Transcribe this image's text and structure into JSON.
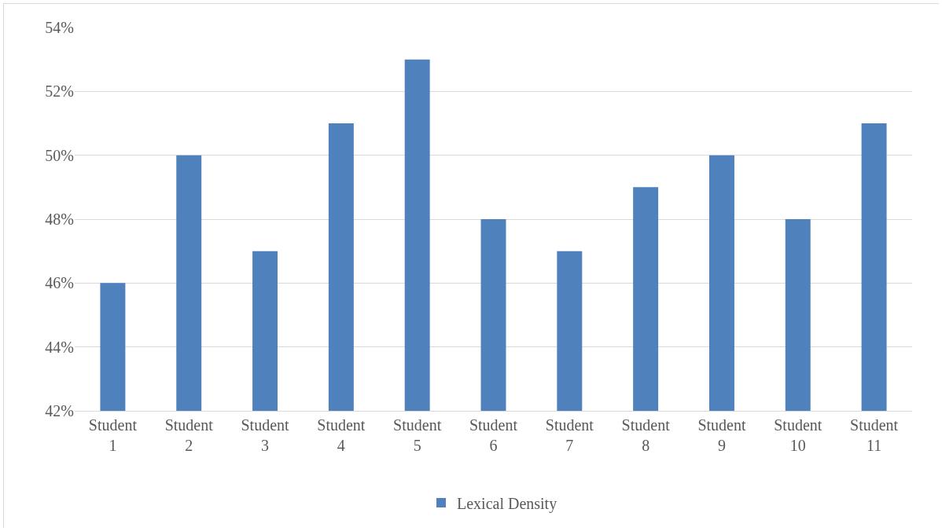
{
  "chart_data": {
    "type": "bar",
    "categories": [
      "Student 1",
      "Student 2",
      "Student 3",
      "Student 4",
      "Student 5",
      "Student 6",
      "Student 7",
      "Student 8",
      "Student 9",
      "Student 10",
      "Student 11"
    ],
    "series": [
      {
        "name": "Lexical Density",
        "color": "#4f81bd",
        "values": [
          46,
          50,
          47,
          51,
          53,
          48,
          47,
          49,
          50,
          48,
          51
        ]
      }
    ],
    "ylim": [
      42,
      54
    ],
    "yticks": [
      {
        "value": 42,
        "label": "42%"
      },
      {
        "value": 44,
        "label": "44%"
      },
      {
        "value": 46,
        "label": "46%"
      },
      {
        "value": 48,
        "label": "48%"
      },
      {
        "value": 50,
        "label": "50%"
      },
      {
        "value": 52,
        "label": "52%"
      },
      {
        "value": 54,
        "label": "54%"
      }
    ],
    "grid": "y",
    "legend": "bottom"
  }
}
